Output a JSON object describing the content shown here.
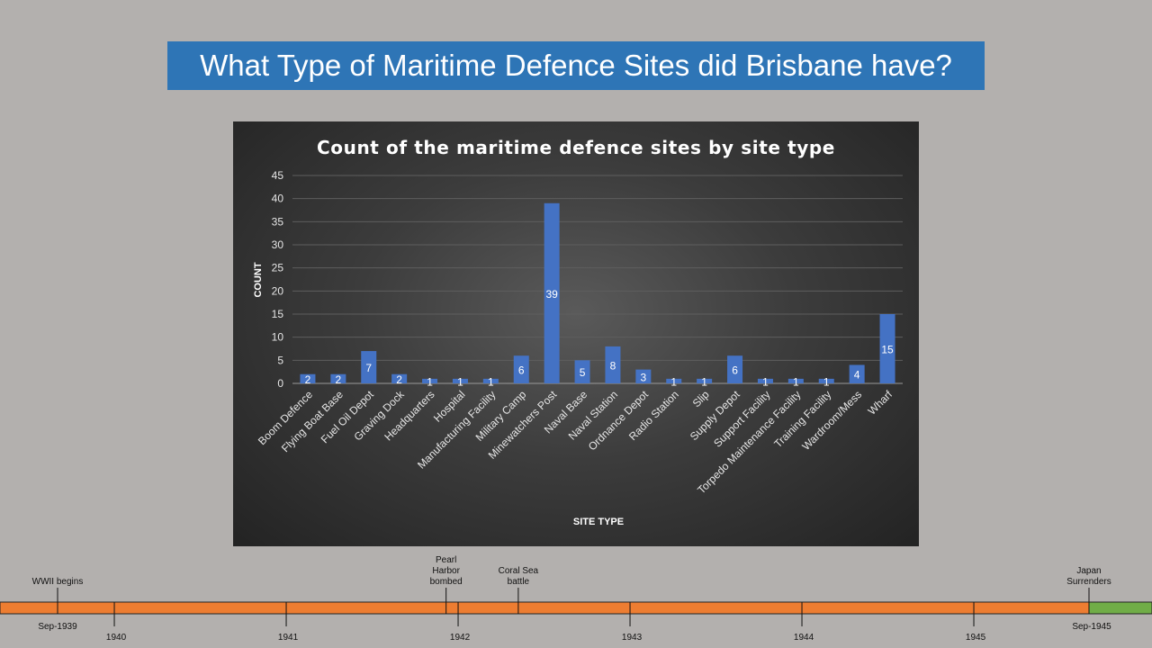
{
  "slide": {
    "title": "What Type of Maritime Defence Sites did Brisbane have?"
  },
  "chart_data": {
    "type": "bar",
    "title": "Count of the maritime defence sites by site type",
    "xlabel": "SITE TYPE",
    "ylabel": "COUNT",
    "ylim": [
      0,
      45
    ],
    "yticks": [
      0,
      5,
      10,
      15,
      20,
      25,
      30,
      35,
      40,
      45
    ],
    "grid": true,
    "legend": "none",
    "bar_color": "#4472c4",
    "categories": [
      "Boom Defence",
      "Flying Boat Base",
      "Fuel Oil Depot",
      "Graving Dock",
      "Headquarters",
      "Hospital",
      "Manufacturing Facility",
      "Military Camp",
      "Minewatchers Post",
      "Naval Base",
      "Naval Station",
      "Ordnance Depot",
      "Radio Station",
      "Slip",
      "Supply Depot",
      "Support Facility",
      "Torpedo Maintenance Facility",
      "Training Facility",
      "Wardroom/Mess",
      "Wharf"
    ],
    "values": [
      2,
      2,
      7,
      2,
      1,
      1,
      1,
      6,
      39,
      5,
      8,
      3,
      1,
      1,
      6,
      1,
      1,
      1,
      4,
      15
    ]
  },
  "timeline": {
    "bar_color": "#ed7d31",
    "end_color": "#70ad47",
    "start_year": 1939.67,
    "end_year": 1945.67,
    "years": [
      {
        "label": "1940",
        "year": 1940
      },
      {
        "label": "1941",
        "year": 1941
      },
      {
        "label": "1942",
        "year": 1942
      },
      {
        "label": "1943",
        "year": 1943
      },
      {
        "label": "1944",
        "year": 1944
      },
      {
        "label": "1945",
        "year": 1945
      }
    ],
    "start_label": "Sep-1939",
    "end_label": "Sep-1945",
    "events": [
      {
        "label": [
          "WWII begins"
        ],
        "year": 1939.67
      },
      {
        "label": [
          "Pearl",
          "Harbor",
          "bombed"
        ],
        "year": 1941.93
      },
      {
        "label": [
          "Coral Sea",
          "battle"
        ],
        "year": 1942.35
      },
      {
        "label": [
          "Japan",
          "Surrenders"
        ],
        "year": 1945.67
      }
    ]
  }
}
